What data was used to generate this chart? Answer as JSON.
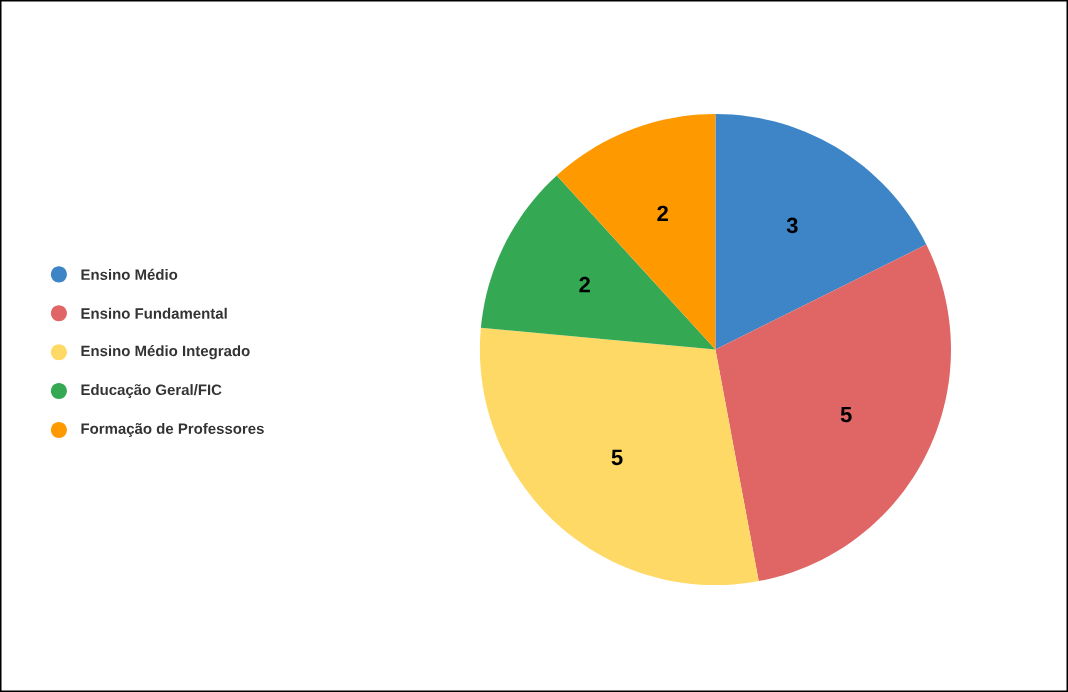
{
  "chart_data": {
    "type": "pie",
    "categories": [
      "Ensino Médio",
      "Ensino Fundamental",
      "Ensino Médio Integrado",
      "Educação Geral/FIC",
      "Formação de Professores"
    ],
    "values": [
      3,
      5,
      5,
      2,
      2
    ],
    "colors": [
      "#3d85c6",
      "#e06666",
      "#ffd966",
      "#34a853",
      "#ff9900"
    ],
    "data_labels": true,
    "legend": "left"
  }
}
